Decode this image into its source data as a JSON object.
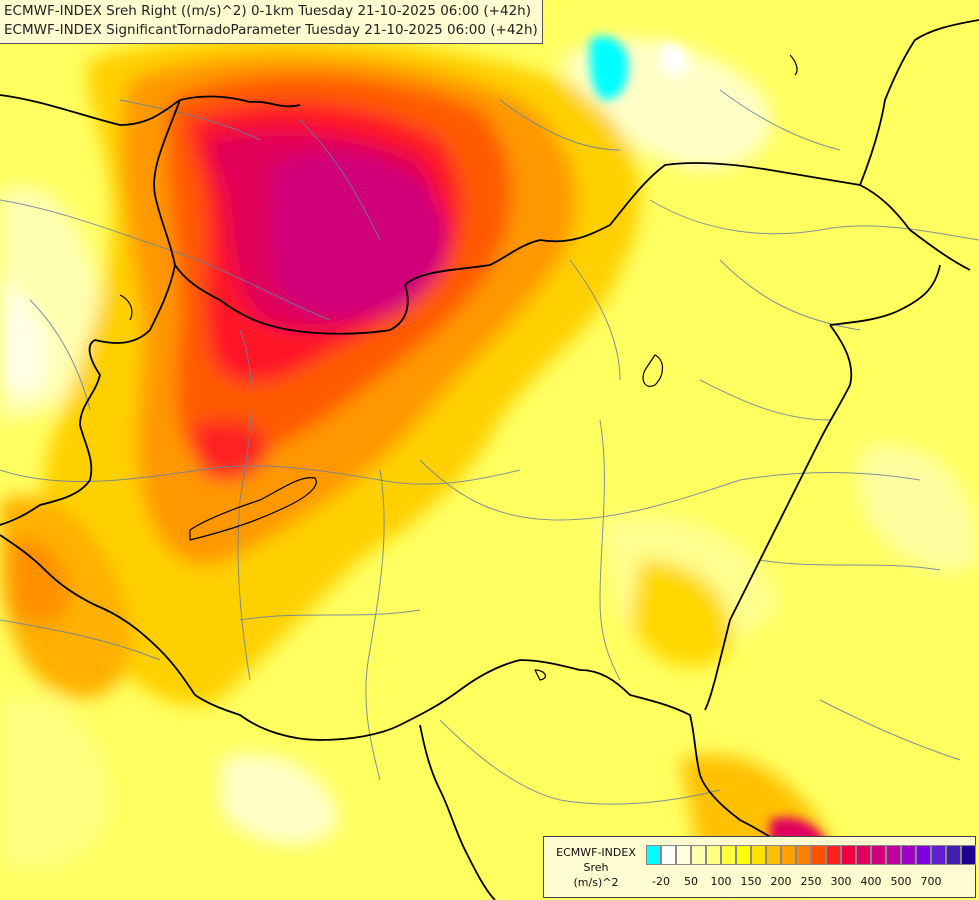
{
  "header": {
    "line1": "ECMWF-INDEX Sreh Right ((m/s)^2) 0-1km Tuesday 21-10-2025 06:00 (+42h)",
    "line2": "ECMWF-INDEX SignificantTornadoParameter Tuesday 21-10-2025 06:00 (+42h)"
  },
  "legend": {
    "title1": "ECMWF-INDEX",
    "title2": "Sreh",
    "title3": "(m/s)^2",
    "colors": [
      "#00ffff",
      "#ffffff",
      "#ffffe0",
      "#ffffb0",
      "#ffff80",
      "#ffff40",
      "#ffff00",
      "#ffe000",
      "#ffc000",
      "#ffa000",
      "#ff8000",
      "#ff5000",
      "#ff2020",
      "#f00040",
      "#e00060",
      "#d0007a",
      "#c000a0",
      "#a000c8",
      "#8000e0",
      "#6020d0",
      "#4020b0",
      "#200090"
    ],
    "ticks": [
      {
        "label": "-20",
        "index": 1
      },
      {
        "label": "50",
        "index": 3
      },
      {
        "label": "100",
        "index": 5
      },
      {
        "label": "150",
        "index": 7
      },
      {
        "label": "200",
        "index": 9
      },
      {
        "label": "250",
        "index": 11
      },
      {
        "label": "300",
        "index": 13
      },
      {
        "label": "400",
        "index": 15
      },
      {
        "label": "500",
        "index": 17
      },
      {
        "label": "700",
        "index": 19
      }
    ]
  }
}
